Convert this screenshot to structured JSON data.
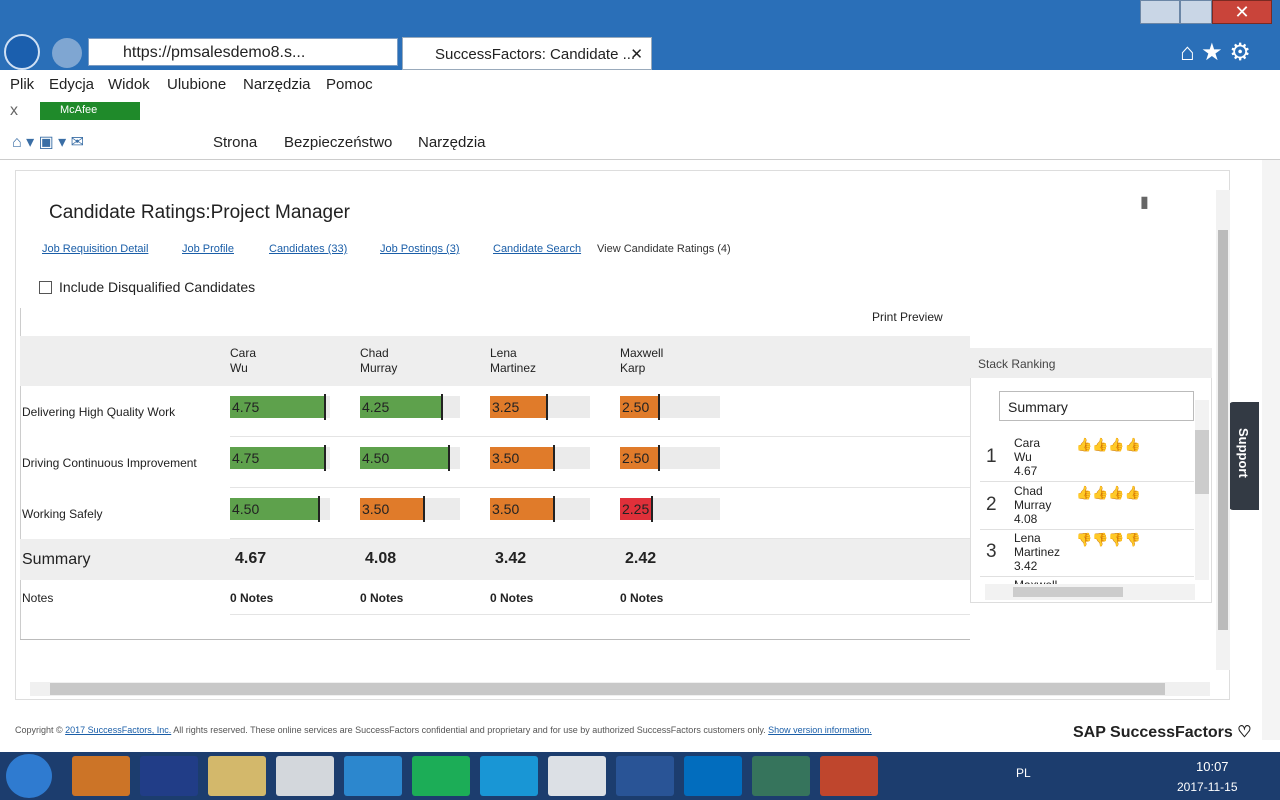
{
  "browser": {
    "url": "https://pmsalesdemo8.s...",
    "tab": "SuccessFactors: Candidate ...",
    "menu": [
      "Plik",
      "Edycja",
      "Widok",
      "Ulubione",
      "Narzędzia",
      "Pomoc"
    ],
    "mcafee": "McAfee",
    "toolbar": [
      "Strona",
      "Bezpieczeństwo",
      "Narzędzia"
    ]
  },
  "page": {
    "title": "Candidate Ratings:Project Manager",
    "nav": [
      "Job Requisition Detail",
      "Job Profile",
      "Candidates (33)",
      "Job Postings (3)",
      "Candidate Search",
      "View Candidate Ratings (4)"
    ],
    "checkbox": "Include Disqualified Candidates",
    "print": "Print Preview",
    "candidates": [
      {
        "first": "Cara",
        "last": "Wu"
      },
      {
        "first": "Chad",
        "last": "Murray"
      },
      {
        "first": "Lena",
        "last": "Martinez"
      },
      {
        "first": "Maxwell",
        "last": "Karp"
      }
    ],
    "rows": [
      {
        "label": "Delivering High Quality Work",
        "ratings": [
          {
            "value": 4.75,
            "label": "4.75",
            "color": "#5ea14c"
          },
          {
            "value": 4.25,
            "label": "4.25",
            "color": "#5ea14c"
          },
          {
            "value": 3.25,
            "label": "3.25",
            "color": "#e07b2a"
          },
          {
            "value": 2.5,
            "label": "2.50",
            "color": "#e07b2a"
          }
        ]
      },
      {
        "label": "Driving Continuous Improvement",
        "ratings": [
          {
            "value": 4.75,
            "label": "4.75",
            "color": "#5ea14c"
          },
          {
            "value": 4.5,
            "label": "4.50",
            "color": "#5ea14c"
          },
          {
            "value": 3.5,
            "label": "3.50",
            "color": "#e07b2a"
          },
          {
            "value": 2.5,
            "label": "2.50",
            "color": "#e07b2a"
          }
        ]
      },
      {
        "label": "Working Safely",
        "ratings": [
          {
            "value": 4.5,
            "label": "4.50",
            "color": "#5ea14c"
          },
          {
            "value": 3.5,
            "label": "3.50",
            "color": "#e07b2a"
          },
          {
            "value": 3.5,
            "label": "3.50",
            "color": "#e07b2a"
          },
          {
            "value": 2.25,
            "label": "2.25",
            "color": "#e0303a"
          }
        ]
      }
    ],
    "summary_label": "Summary",
    "summary": [
      4.67,
      4.08,
      3.42,
      2.42
    ],
    "notes_label": "Notes",
    "notes": [
      "0 Notes",
      "0 Notes",
      "0 Notes",
      "0 Notes"
    ],
    "stack": {
      "title": "Stack Ranking",
      "select": "Summary",
      "items": [
        {
          "rank": 1,
          "first": "Cara",
          "last": "Wu",
          "score": 4.67
        },
        {
          "rank": 2,
          "first": "Chad",
          "last": "Murray",
          "score": 4.08
        },
        {
          "rank": 3,
          "first": "Lena",
          "last": "Martinez",
          "score": 3.42
        }
      ],
      "partial": "Maxwell"
    },
    "support": "Support"
  },
  "footer": {
    "copyright": "Copyright © ",
    "link": "2017 SuccessFactors, Inc.",
    "text": " All rights reserved. These online services are SuccessFactors confidential and proprietary and for use by authorized SuccessFactors customers only. ",
    "version": "Show version information.",
    "brand": "SAP SuccessFactors"
  },
  "taskbar": {
    "lang": "PL",
    "time": "10:07",
    "date": "2017-11-15"
  }
}
